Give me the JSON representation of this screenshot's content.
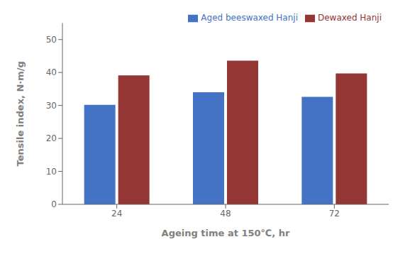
{
  "chart_data": {
    "type": "bar",
    "categories": [
      "24",
      "48",
      "72"
    ],
    "series": [
      {
        "name": "Aged beeswaxed Hanji",
        "color": "#4472C4",
        "values": [
          30.2,
          34.0,
          32.6
        ]
      },
      {
        "name": "Dewaxed Hanji",
        "color": "#943634",
        "values": [
          39.1,
          43.6,
          39.7
        ]
      }
    ],
    "xlabel": "Ageing time at 150℃,  hr",
    "ylabel": "Tensile index, N·m/g",
    "ylim": [
      0,
      55
    ],
    "yticks": [
      0,
      10,
      20,
      30,
      40,
      50
    ],
    "legend": "upper right",
    "grid": false
  }
}
